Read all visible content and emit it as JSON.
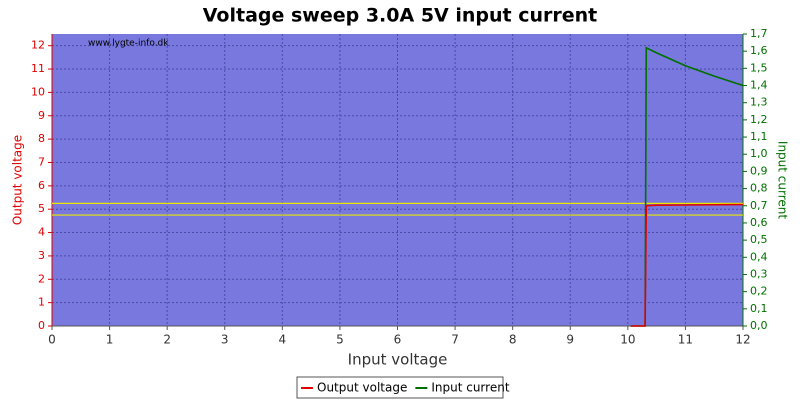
{
  "chart_data": {
    "type": "line",
    "title": "Voltage sweep 3.0A 5V input current",
    "watermark": "www.lygte-info.dk",
    "x_label": "Input voltage",
    "y_label": "Output voltage",
    "y2_label": "Input current",
    "x": [
      10.05,
      10.1,
      10.2,
      10.3,
      10.32,
      10.5,
      11,
      11.5,
      12
    ],
    "series": [
      {
        "name": "Output voltage",
        "color": "#e00000",
        "values": [
          0,
          0,
          0,
          0,
          5.15,
          5.17,
          5.18,
          5.19,
          5.2
        ]
      },
      {
        "name": "Input current",
        "color": "#007000",
        "axis": "y2",
        "values": [
          0,
          0,
          0,
          0,
          1.62,
          1.59,
          1.515,
          1.455,
          1.4
        ]
      }
    ],
    "reference_lines": [
      {
        "value": 5.25,
        "color": "#e8e800"
      },
      {
        "value": 4.75,
        "color": "#e8e800"
      }
    ],
    "xlim": [
      0,
      12
    ],
    "xticks": [
      0,
      1,
      2,
      3,
      4,
      5,
      6,
      7,
      8,
      9,
      10,
      11,
      12
    ],
    "ylim": [
      0,
      12.5
    ],
    "yticks": [
      0,
      1,
      2,
      3,
      4,
      5,
      6,
      7,
      8,
      9,
      10,
      11,
      12
    ],
    "y2lim": [
      0,
      1.7
    ],
    "y2ticks": [
      {
        "value": 0,
        "label": "0,0"
      },
      {
        "value": 0.1,
        "label": "0,1"
      },
      {
        "value": 0.2,
        "label": "0,2"
      },
      {
        "value": 0.3,
        "label": "0,3"
      },
      {
        "value": 0.4,
        "label": "0,4"
      },
      {
        "value": 0.5,
        "label": "0,5"
      },
      {
        "value": 0.6,
        "label": "0,6"
      },
      {
        "value": 0.7,
        "label": "0,7"
      },
      {
        "value": 0.8,
        "label": "0,8"
      },
      {
        "value": 0.9,
        "label": "0,9"
      },
      {
        "value": 1.0,
        "label": "1,0"
      },
      {
        "value": 1.1,
        "label": "1,1"
      },
      {
        "value": 1.2,
        "label": "1,2"
      },
      {
        "value": 1.3,
        "label": "1,3"
      },
      {
        "value": 1.4,
        "label": "1,4"
      },
      {
        "value": 1.5,
        "label": "1,5"
      },
      {
        "value": 1.6,
        "label": "1,6"
      },
      {
        "value": 1.7,
        "label": "1,7"
      }
    ],
    "grid": true,
    "legend": "bottom"
  }
}
